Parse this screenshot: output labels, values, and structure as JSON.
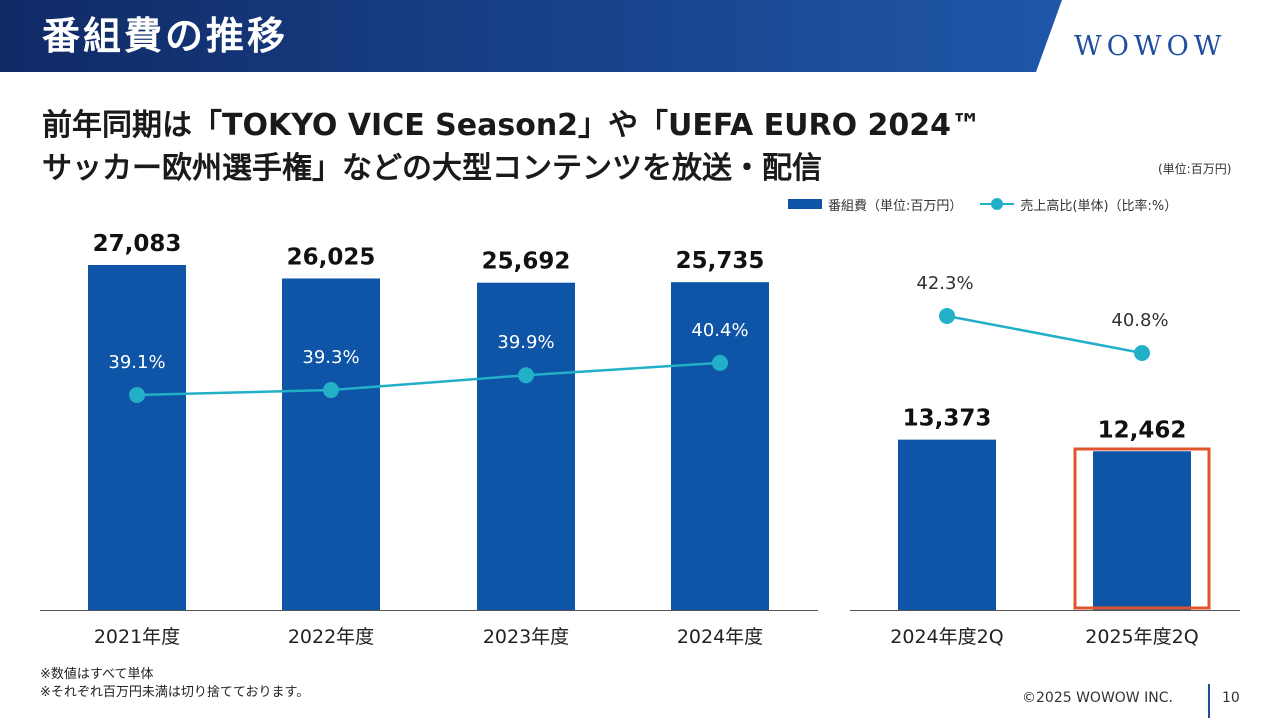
{
  "header": {
    "title": "番組費の推移",
    "logo": "WOWOW",
    "colors": {
      "band_start": "#102a66",
      "band_end": "#1f57a9",
      "accent": "#0e55a7"
    }
  },
  "headline": {
    "line1": "前年同期は「TOKYO VICE Season2」や「UEFA EURO 2024™",
    "line2": "サッカー欧州選手権」などの大型コンテンツを放送・配信"
  },
  "unit_note": "(単位:百万円)",
  "legend": {
    "bar_label": "番組費（単位:百万円）",
    "line_label": "売上高比(単体)（比率:%）"
  },
  "chart_data": [
    {
      "type": "bar",
      "categories": [
        "2021年度",
        "2022年度",
        "2023年度",
        "2024年度"
      ],
      "series": [
        {
          "name": "番組費（単位:百万円）",
          "type": "bar",
          "values": [
            27083,
            26025,
            25692,
            25735
          ],
          "labels": [
            "27,083",
            "26,025",
            "25,692",
            "25,735"
          ],
          "color": "#0e55a7"
        },
        {
          "name": "売上高比(単体)（比率:%）",
          "type": "line",
          "values": [
            39.1,
            39.3,
            39.9,
            40.4
          ],
          "labels": [
            "39.1%",
            "39.3%",
            "39.9%",
            "40.4%"
          ],
          "color": "#22b0c8"
        }
      ]
    },
    {
      "type": "bar",
      "categories": [
        "2024年度2Q",
        "2025年度2Q"
      ],
      "series": [
        {
          "name": "番組費（単位:百万円）",
          "type": "bar",
          "values": [
            13373,
            12462
          ],
          "labels": [
            "13,373",
            "12,462"
          ],
          "color": "#0e55a7"
        },
        {
          "name": "売上高比(単体)（比率:%）",
          "type": "line",
          "values": [
            42.3,
            40.8
          ],
          "labels": [
            "42.3%",
            "40.8%"
          ],
          "color": "#22b0c8"
        }
      ],
      "highlight_category": "2025年度2Q",
      "highlight_color": "#e0552b"
    }
  ],
  "footnotes": [
    "※数値はすべて単体",
    "※それぞれ百万円未満は切り捨てております。"
  ],
  "footer": {
    "copyright": "©2025 WOWOW INC.",
    "page_number": "10"
  }
}
